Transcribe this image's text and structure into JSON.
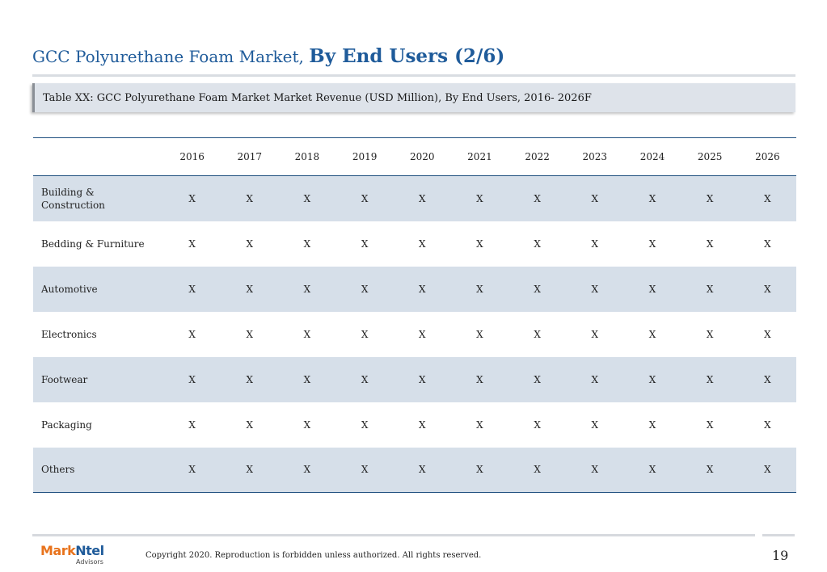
{
  "title": {
    "part1": "GCC Polyurethane Foam Market, ",
    "part2": "By End Users (2/6)"
  },
  "caption": "Table XX: GCC Polyurethane Foam Market Market Revenue (USD Million), By End Users, 2016- 2026F",
  "table": {
    "years": [
      "2016",
      "2017",
      "2018",
      "2019",
      "2020",
      "2021",
      "2022",
      "2023",
      "2024",
      "2025",
      "2026"
    ],
    "rows": [
      {
        "label": "Building & Construction",
        "values": [
          "X",
          "X",
          "X",
          "X",
          "X",
          "X",
          "X",
          "X",
          "X",
          "X",
          "X"
        ]
      },
      {
        "label": "Bedding & Furniture",
        "values": [
          "X",
          "X",
          "X",
          "X",
          "X",
          "X",
          "X",
          "X",
          "X",
          "X",
          "X"
        ]
      },
      {
        "label": "Automotive",
        "values": [
          "X",
          "X",
          "X",
          "X",
          "X",
          "X",
          "X",
          "X",
          "X",
          "X",
          "X"
        ]
      },
      {
        "label": "Electronics",
        "values": [
          "X",
          "X",
          "X",
          "X",
          "X",
          "X",
          "X",
          "X",
          "X",
          "X",
          "X"
        ]
      },
      {
        "label": "Footwear",
        "values": [
          "X",
          "X",
          "X",
          "X",
          "X",
          "X",
          "X",
          "X",
          "X",
          "X",
          "X"
        ]
      },
      {
        "label": "Packaging",
        "values": [
          "X",
          "X",
          "X",
          "X",
          "X",
          "X",
          "X",
          "X",
          "X",
          "X",
          "X"
        ]
      },
      {
        "label": "Others",
        "values": [
          "X",
          "X",
          "X",
          "X",
          "X",
          "X",
          "X",
          "X",
          "X",
          "X",
          "X"
        ]
      }
    ]
  },
  "footer": {
    "logo_part1": "Mark",
    "logo_part2": "Ntel",
    "logo_sub": "Advisors",
    "copyright": "Copyright 2020. Reproduction is forbidden unless authorized. All rights reserved.",
    "page_number": "19"
  },
  "colors": {
    "title_blue": "#1f5b9a",
    "row_shade": "#d6dfe9",
    "rule_blue": "#1f4f7f",
    "logo_orange": "#e8731c"
  }
}
